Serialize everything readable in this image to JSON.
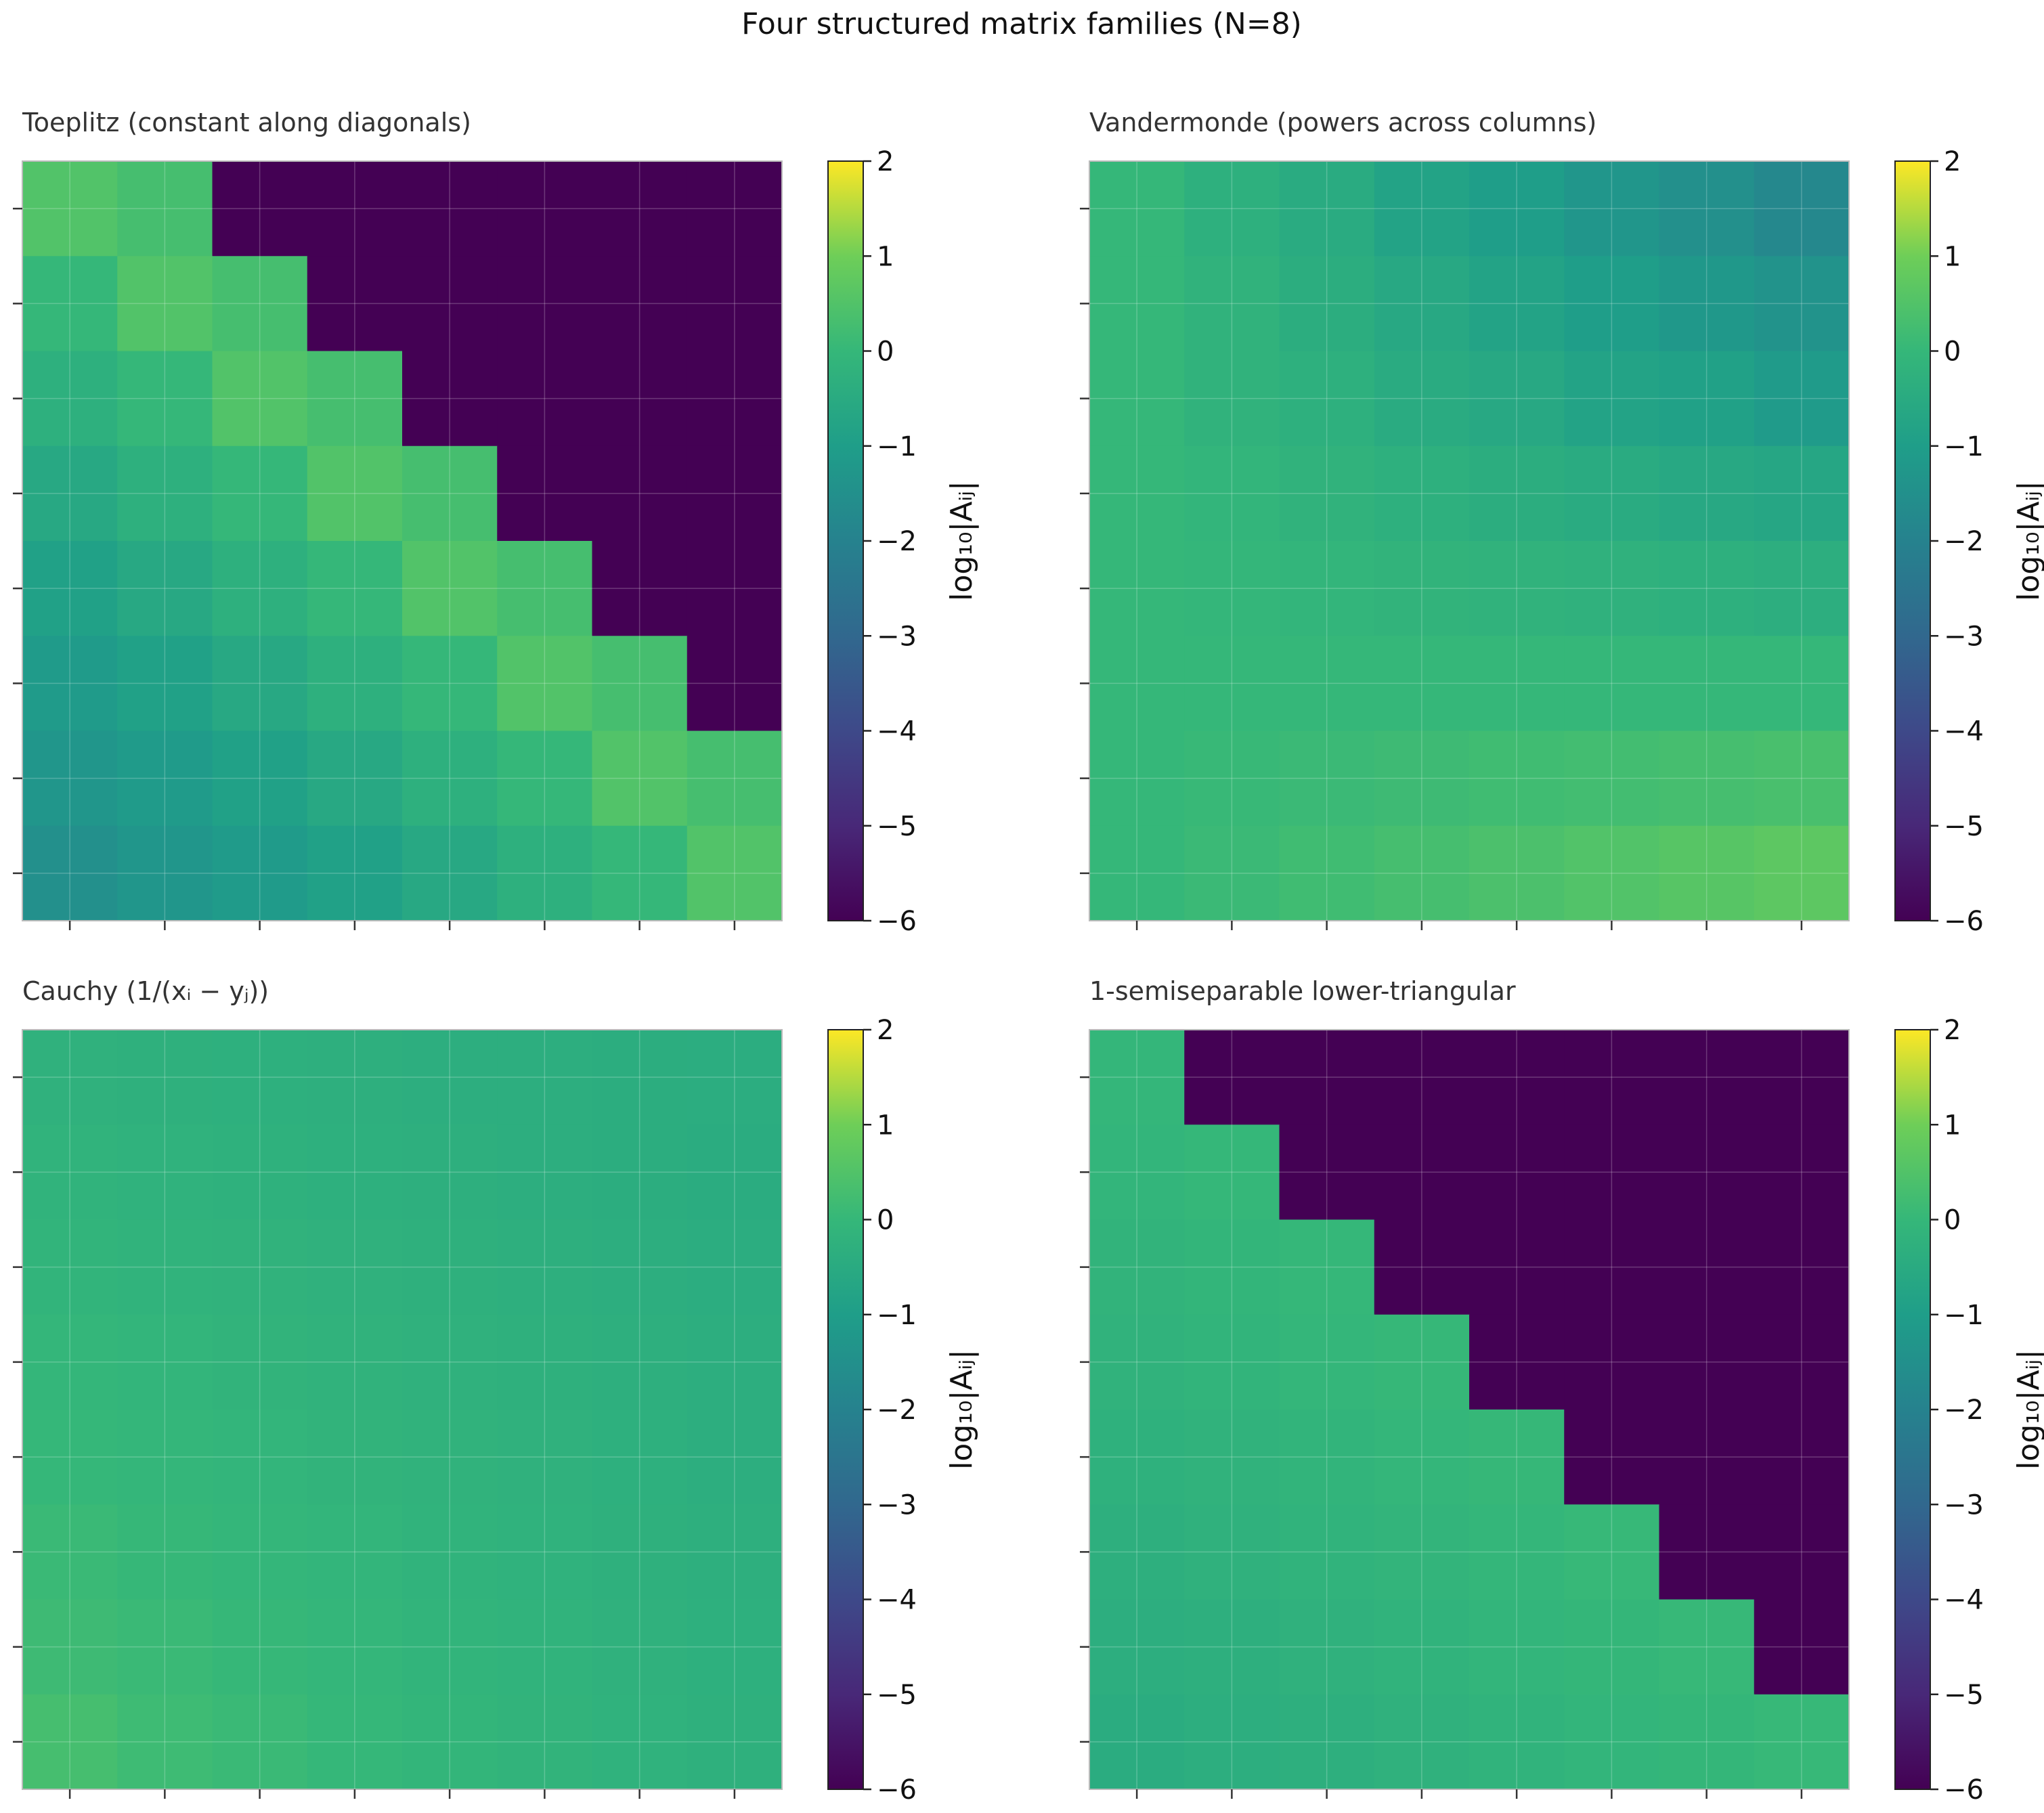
{
  "figure": {
    "title": "Four structured matrix families (N=8)"
  },
  "colorbar": {
    "label": "log₁₀|Aᵢⱼ|",
    "ticks": [
      "2",
      "1",
      "0",
      "−1",
      "−2",
      "−3",
      "−4",
      "−5",
      "−6"
    ],
    "range": [
      -6,
      2
    ],
    "colormap": "viridis"
  },
  "chart_data": [
    {
      "type": "heatmap",
      "title": "Toeplitz (constant along diagonals)",
      "vmin": -6,
      "vmax": 2,
      "grid": true,
      "values": [
        [
          0.5,
          0.3,
          -6,
          -6,
          -6,
          -6,
          -6,
          -6
        ],
        [
          0.0,
          0.5,
          0.3,
          -6,
          -6,
          -6,
          -6,
          -6
        ],
        [
          -0.3,
          0.0,
          0.5,
          0.3,
          -6,
          -6,
          -6,
          -6
        ],
        [
          -0.6,
          -0.3,
          0.0,
          0.5,
          0.3,
          -6,
          -6,
          -6
        ],
        [
          -0.9,
          -0.6,
          -0.3,
          0.0,
          0.5,
          0.3,
          -6,
          -6
        ],
        [
          -1.1,
          -0.9,
          -0.6,
          -0.3,
          0.0,
          0.5,
          0.3,
          -6
        ],
        [
          -1.3,
          -1.1,
          -0.9,
          -0.6,
          -0.3,
          0.0,
          0.5,
          0.3
        ],
        [
          -1.5,
          -1.3,
          -1.1,
          -0.9,
          -0.6,
          -0.3,
          0.0,
          0.5
        ]
      ]
    },
    {
      "type": "heatmap",
      "title": "Vandermonde (powers across columns)",
      "vmin": -6,
      "vmax": 2,
      "grid": true,
      "values": [
        [
          0.0,
          -0.3,
          -0.5,
          -0.8,
          -1.0,
          -1.3,
          -1.5,
          -1.8
        ],
        [
          0.0,
          -0.2,
          -0.4,
          -0.6,
          -0.8,
          -1.0,
          -1.2,
          -1.4
        ],
        [
          0.0,
          -0.2,
          -0.3,
          -0.5,
          -0.6,
          -0.8,
          -0.9,
          -1.1
        ],
        [
          0.0,
          -0.1,
          -0.2,
          -0.3,
          -0.4,
          -0.5,
          -0.6,
          -0.7
        ],
        [
          0.0,
          -0.05,
          -0.1,
          -0.15,
          -0.2,
          -0.25,
          -0.3,
          -0.35
        ],
        [
          0.0,
          0.0,
          0.0,
          0.0,
          0.0,
          0.0,
          0.0,
          0.0
        ],
        [
          0.0,
          0.05,
          0.1,
          0.15,
          0.2,
          0.25,
          0.3,
          0.35
        ],
        [
          0.0,
          0.1,
          0.2,
          0.3,
          0.4,
          0.5,
          0.6,
          0.7
        ]
      ]
    },
    {
      "type": "heatmap",
      "title": "Cauchy (1/(xᵢ − yⱼ))",
      "vmin": -6,
      "vmax": 2,
      "grid": true,
      "values": [
        [
          -0.25,
          -0.28,
          -0.3,
          -0.32,
          -0.35,
          -0.38,
          -0.4,
          -0.42
        ],
        [
          -0.18,
          -0.22,
          -0.26,
          -0.3,
          -0.33,
          -0.36,
          -0.4,
          -0.45
        ],
        [
          -0.12,
          -0.16,
          -0.2,
          -0.24,
          -0.28,
          -0.32,
          -0.37,
          -0.42
        ],
        [
          -0.06,
          -0.1,
          -0.15,
          -0.2,
          -0.24,
          -0.28,
          -0.33,
          -0.38
        ],
        [
          0.0,
          -0.05,
          -0.1,
          -0.15,
          -0.2,
          -0.25,
          -0.3,
          -0.35
        ],
        [
          0.08,
          0.02,
          -0.04,
          -0.1,
          -0.16,
          -0.22,
          -0.27,
          -0.32
        ],
        [
          0.15,
          0.08,
          0.02,
          -0.05,
          -0.12,
          -0.18,
          -0.24,
          -0.3
        ],
        [
          0.3,
          0.16,
          0.08,
          0.0,
          -0.08,
          -0.15,
          -0.22,
          -0.28
        ]
      ]
    },
    {
      "type": "heatmap",
      "title": "1-semiseparable lower-triangular",
      "vmin": -6,
      "vmax": 2,
      "grid": true,
      "values": [
        [
          -0.05,
          -6,
          -6,
          -6,
          -6,
          -6,
          -6,
          -6
        ],
        [
          -0.1,
          -0.02,
          -6,
          -6,
          -6,
          -6,
          -6,
          -6
        ],
        [
          -0.15,
          -0.08,
          0.0,
          -6,
          -6,
          -6,
          -6,
          -6
        ],
        [
          -0.2,
          -0.13,
          -0.06,
          0.02,
          -6,
          -6,
          -6,
          -6
        ],
        [
          -0.26,
          -0.19,
          -0.12,
          -0.05,
          0.02,
          -6,
          -6,
          -6
        ],
        [
          -0.32,
          -0.25,
          -0.18,
          -0.11,
          -0.04,
          0.03,
          -6,
          -6
        ],
        [
          -0.38,
          -0.31,
          -0.24,
          -0.17,
          -0.1,
          -0.03,
          0.04,
          -6
        ],
        [
          -0.45,
          -0.38,
          -0.31,
          -0.24,
          -0.17,
          -0.1,
          -0.03,
          0.04
        ]
      ]
    }
  ]
}
